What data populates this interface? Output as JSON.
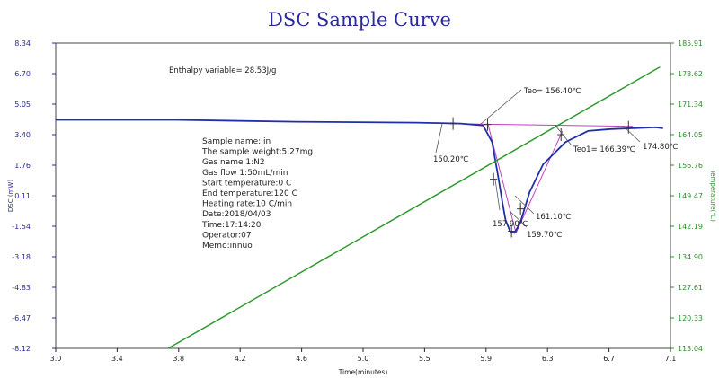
{
  "chart_data": {
    "type": "line",
    "title": "DSC Sample Curve",
    "xlabel": "Time(minutes)",
    "ylabel_left": "DSC (mW)",
    "ylabel_right": "Temperature(℃)",
    "x_ticks": [
      "3.0",
      "3.4",
      "3.8",
      "4.2",
      "4.6",
      "5.0",
      "5.5",
      "5.9",
      "6.3",
      "6.7",
      "7.1"
    ],
    "y_left_ticks": [
      "8.34",
      "6.70",
      "5.05",
      "3.40",
      "1.76",
      "0.11",
      "-1.54",
      "-3.18",
      "-4.83",
      "-6.47",
      "-8.12"
    ],
    "y_right_ticks": [
      "185.91",
      "178.62",
      "171.34",
      "164.05",
      "156.76",
      "149.47",
      "142.19",
      "134.90",
      "127.61",
      "120.33",
      "113.04"
    ],
    "xlim": [
      3.0,
      7.1
    ],
    "ylim_left": [
      -8.12,
      8.34
    ],
    "ylim_right": [
      113.04,
      185.91
    ],
    "grid": false,
    "series": [
      {
        "axis": "left",
        "color": "#1f2fa6",
        "x": [
          3.0,
          3.8,
          4.6,
          5.4,
          5.7,
          5.85,
          5.91,
          5.95,
          5.98,
          6.0,
          6.03,
          6.06,
          6.1,
          6.16,
          6.25,
          6.4,
          6.55,
          6.7,
          6.85,
          7.0,
          7.05
        ],
        "y": [
          4.2,
          4.2,
          4.1,
          4.05,
          4.0,
          3.9,
          3.0,
          1.2,
          -0.3,
          -1.2,
          -1.8,
          -1.9,
          -1.3,
          0.3,
          1.8,
          3.0,
          3.6,
          3.7,
          3.75,
          3.8,
          3.75
        ]
      },
      {
        "axis": "right",
        "color": "#2e9a2e",
        "x": [
          3.75,
          7.03
        ],
        "y": [
          113.04,
          180.2
        ]
      }
    ],
    "baseline_segments": [
      {
        "x": [
          5.6,
          6.85
        ],
        "y": [
          4.0,
          3.85
        ]
      },
      {
        "x": [
          5.88,
          6.07
        ],
        "y": [
          4.05,
          -1.9
        ]
      },
      {
        "x": [
          6.07,
          6.38
        ],
        "y": [
          -1.9,
          3.6
        ]
      }
    ],
    "markers": [
      {
        "x": 5.65,
        "y": 4.0
      },
      {
        "x": 5.88,
        "y": 3.95
      },
      {
        "x": 5.92,
        "y": 1.0
      },
      {
        "x": 6.04,
        "y": -1.8
      },
      {
        "x": 6.1,
        "y": -0.6
      },
      {
        "x": 6.37,
        "y": 3.4
      },
      {
        "x": 6.82,
        "y": 3.8
      }
    ],
    "annotations": [
      {
        "text": "Enthalpy variable= 28.53J/g"
      },
      {
        "text": "Teo= 156.40℃"
      },
      {
        "text": "150.20℃"
      },
      {
        "text": "Teo1= 166.39℃"
      },
      {
        "text": "174.80℃"
      },
      {
        "text": "157.90℃"
      },
      {
        "text": "161.10℃"
      },
      {
        "text": "159.70℃"
      }
    ],
    "info_block": [
      "Sample name: in",
      "The sample weight:5.27mg",
      "Gas name 1:N2",
      "Gas flow 1:50mL/min",
      "Start temperature:0 C",
      "End temperature:120 C",
      "Heating rate:10 C/min",
      "Date:2018/04/03",
      "Time:17:14:20",
      "Operator:07",
      "Memo:innuo"
    ]
  }
}
